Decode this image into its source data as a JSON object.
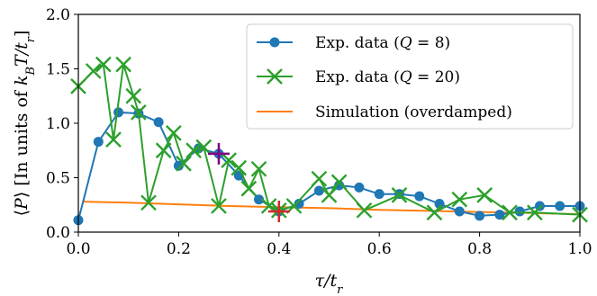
{
  "chart_data": {
    "type": "line",
    "xlabel": "τ/t_r",
    "ylabel": "⟨P⟩ [In units of k_BT/t_r]",
    "xlim": [
      0.0,
      1.0
    ],
    "ylim": [
      0.0,
      2.0
    ],
    "xticks": [
      0.0,
      0.2,
      0.4,
      0.6,
      0.8,
      1.0
    ],
    "yticks": [
      0.0,
      0.5,
      1.0,
      1.5,
      2.0
    ],
    "xtick_labels": [
      "0.0",
      "0.2",
      "0.4",
      "0.6",
      "0.8",
      "1.0"
    ],
    "ytick_labels": [
      "0.0",
      "0.5",
      "1.0",
      "1.5",
      "2.0"
    ],
    "grid": false,
    "legend_position": "top-right",
    "series": [
      {
        "name": "Exp. data (Q = 8)",
        "color": "#1f77b4",
        "marker": "circle",
        "x": [
          0.0,
          0.04,
          0.08,
          0.12,
          0.16,
          0.2,
          0.24,
          0.28,
          0.32,
          0.36,
          0.4,
          0.44,
          0.48,
          0.52,
          0.56,
          0.6,
          0.64,
          0.68,
          0.72,
          0.76,
          0.8,
          0.84,
          0.88,
          0.92,
          0.96,
          1.0
        ],
        "y": [
          0.11,
          0.83,
          1.1,
          1.09,
          1.01,
          0.61,
          0.77,
          0.72,
          0.52,
          0.3,
          0.19,
          0.26,
          0.38,
          0.43,
          0.41,
          0.35,
          0.35,
          0.33,
          0.26,
          0.19,
          0.15,
          0.16,
          0.19,
          0.24,
          0.24,
          0.24
        ]
      },
      {
        "name": "Exp. data (Q = 20)",
        "color": "#2ca02c",
        "marker": "x",
        "x": [
          0.0,
          0.03,
          0.05,
          0.07,
          0.09,
          0.11,
          0.12,
          0.14,
          0.17,
          0.19,
          0.21,
          0.23,
          0.25,
          0.28,
          0.3,
          0.32,
          0.34,
          0.36,
          0.38,
          0.4,
          0.43,
          0.48,
          0.5,
          0.52,
          0.57,
          0.64,
          0.71,
          0.76,
          0.81,
          0.86,
          0.91,
          1.0
        ],
        "y": [
          1.34,
          1.48,
          1.54,
          0.85,
          1.54,
          1.25,
          1.1,
          0.27,
          0.75,
          0.91,
          0.63,
          0.75,
          0.78,
          0.24,
          0.66,
          0.59,
          0.4,
          0.58,
          0.24,
          0.2,
          0.24,
          0.49,
          0.34,
          0.46,
          0.2,
          0.34,
          0.18,
          0.3,
          0.34,
          0.18,
          0.18,
          0.16
        ]
      },
      {
        "name": "Simulation (overdamped)",
        "color": "#ff7f0e",
        "marker": "none",
        "x": [
          0.01,
          0.1,
          0.2,
          0.3,
          0.4,
          0.5,
          0.6,
          0.7,
          0.8,
          0.9,
          1.0
        ],
        "y": [
          0.28,
          0.27,
          0.255,
          0.24,
          0.23,
          0.22,
          0.205,
          0.195,
          0.185,
          0.175,
          0.165
        ]
      }
    ],
    "highlights": [
      {
        "x": 0.28,
        "y": 0.72,
        "color": "#800080",
        "marker": "plus"
      },
      {
        "x": 0.4,
        "y": 0.19,
        "color": "#d62728",
        "marker": "plus"
      }
    ]
  }
}
